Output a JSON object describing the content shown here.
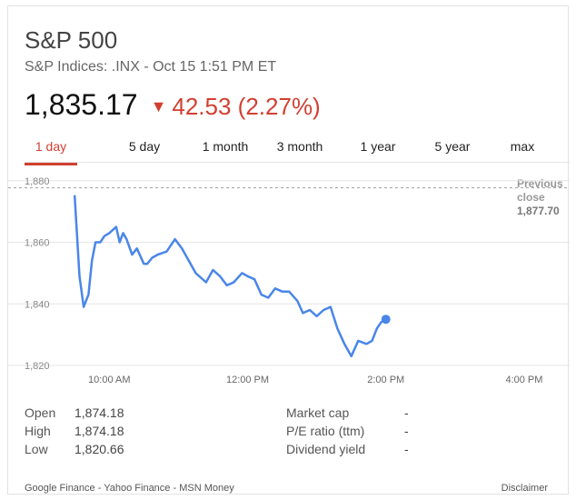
{
  "header": {
    "title": "S&P 500",
    "subtitle": "S&P Indices: .INX - Oct 15 1:51 PM ET",
    "price": "1,835.17",
    "change": "42.53 (2.27%)",
    "change_color": "#d23f31",
    "arrow_icon": "down-arrow-icon"
  },
  "tabs": [
    {
      "label": "1 day",
      "active": true
    },
    {
      "label": "5 day",
      "active": false
    },
    {
      "label": "1 month",
      "active": false
    },
    {
      "label": "3 month",
      "active": false
    },
    {
      "label": "1 year",
      "active": false
    },
    {
      "label": "5 year",
      "active": false
    },
    {
      "label": "max",
      "active": false
    }
  ],
  "previous_close": {
    "label_line1": "Previous",
    "label_line2": "close",
    "value": "1,877.70"
  },
  "stats_left": [
    {
      "label": "Open",
      "value": "1,874.18"
    },
    {
      "label": "High",
      "value": "1,874.18"
    },
    {
      "label": "Low",
      "value": "1,820.66"
    }
  ],
  "stats_right": [
    {
      "label": "Market cap",
      "value": "-"
    },
    {
      "label": "P/E ratio (ttm)",
      "value": "-"
    },
    {
      "label": "Dividend yield",
      "value": "-"
    }
  ],
  "footer": {
    "sources": "Google Finance - Yahoo Finance - MSN Money",
    "disclaimer": "Disclaimer"
  },
  "chart_data": {
    "type": "line",
    "line_color": "#4a86e8",
    "x_unit": "hours",
    "xlim": [
      9.3,
      16.5
    ],
    "ylim": [
      1820,
      1882
    ],
    "yticks": [
      1820,
      1840,
      1860,
      1880
    ],
    "ytick_labels": [
      "1,820",
      "1,840",
      "1,860",
      "1,880"
    ],
    "xticks": [
      10,
      12,
      14,
      16
    ],
    "xtick_labels": [
      "10:00 AM",
      "12:00 PM",
      "2:00 PM",
      "4:00 PM"
    ],
    "reference_line": 1877.7,
    "grid": true,
    "x": [
      9.5,
      9.57,
      9.63,
      9.7,
      9.75,
      9.8,
      9.87,
      9.93,
      10.0,
      10.1,
      10.15,
      10.2,
      10.25,
      10.33,
      10.4,
      10.5,
      10.55,
      10.62,
      10.7,
      10.83,
      10.95,
      11.05,
      11.15,
      11.25,
      11.4,
      11.5,
      11.6,
      11.7,
      11.8,
      11.92,
      12.0,
      12.1,
      12.2,
      12.3,
      12.4,
      12.5,
      12.6,
      12.72,
      12.8,
      12.9,
      13.0,
      13.1,
      13.2,
      13.3,
      13.4,
      13.5,
      13.6,
      13.72,
      13.8,
      13.87,
      13.93,
      14.0
    ],
    "y": [
      1875,
      1849,
      1839,
      1843,
      1854,
      1860,
      1860,
      1862,
      1863,
      1865,
      1860,
      1863,
      1861,
      1856,
      1858,
      1853,
      1853,
      1855,
      1856,
      1857,
      1861,
      1858,
      1854,
      1850,
      1847,
      1851,
      1849,
      1846,
      1847,
      1850,
      1849,
      1848,
      1843,
      1842,
      1845,
      1844,
      1844,
      1841,
      1837,
      1838,
      1836,
      1838,
      1839,
      1832,
      1827,
      1823,
      1828,
      1827,
      1828,
      1832,
      1834,
      1835
    ]
  }
}
